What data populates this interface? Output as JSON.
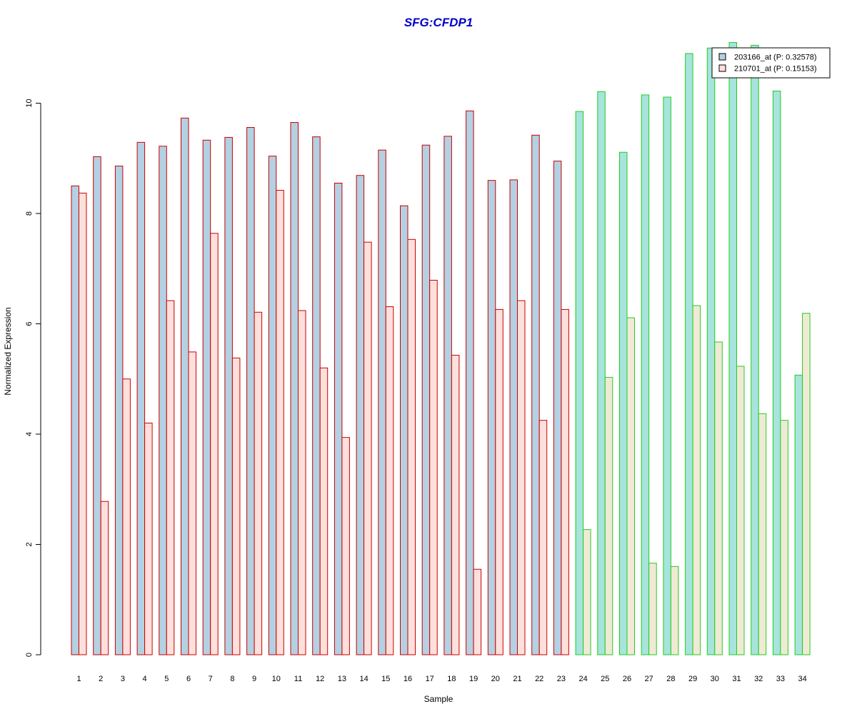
{
  "chart_data": {
    "type": "bar",
    "title": "SFG:CFDP1",
    "xlabel": "Sample",
    "ylabel": "Normalized Expression",
    "ylim": [
      0,
      11.2
    ],
    "yticks": [
      0,
      2,
      4,
      6,
      8,
      10
    ],
    "grid": false,
    "legend_position": "top-right",
    "categories": [
      "1",
      "2",
      "3",
      "4",
      "5",
      "6",
      "7",
      "8",
      "9",
      "10",
      "11",
      "12",
      "13",
      "14",
      "15",
      "16",
      "17",
      "18",
      "19",
      "20",
      "21",
      "22",
      "23",
      "24",
      "25",
      "26",
      "27",
      "28",
      "29",
      "30",
      "31",
      "32",
      "33",
      "34"
    ],
    "series": [
      {
        "name": "203166_at (P: 0.32578)",
        "values": [
          8.5,
          9.03,
          8.86,
          9.29,
          9.22,
          9.73,
          9.33,
          9.38,
          9.56,
          9.04,
          9.65,
          9.39,
          8.55,
          8.69,
          9.15,
          8.14,
          9.24,
          9.4,
          9.86,
          8.6,
          8.61,
          9.42,
          8.95,
          9.85,
          10.21,
          9.11,
          10.15,
          10.11,
          10.9,
          11.0,
          11.1,
          11.05,
          10.22,
          5.07
        ]
      },
      {
        "name": "210701_at (P: 0.15153)",
        "values": [
          8.37,
          2.78,
          5.0,
          4.2,
          6.42,
          5.49,
          7.64,
          5.38,
          6.21,
          8.42,
          6.24,
          5.2,
          3.94,
          7.48,
          6.31,
          7.53,
          6.79,
          5.43,
          1.55,
          6.26,
          6.42,
          4.25,
          6.26,
          2.27,
          5.03,
          6.11,
          1.66,
          1.6,
          6.33,
          5.67,
          5.23,
          4.37,
          4.25,
          6.19
        ]
      }
    ],
    "groups": [
      {
        "from": 1,
        "to": 23,
        "border_color": "#cc0000",
        "fills": [
          "#b3d1e2",
          "#fde0dc"
        ]
      },
      {
        "from": 24,
        "to": 34,
        "border_color": "#22cc22",
        "fills": [
          "#a6e4dc",
          "#f0ead5"
        ]
      }
    ],
    "legend_fills": [
      "#b3d1e2",
      "#fde0dc"
    ]
  }
}
